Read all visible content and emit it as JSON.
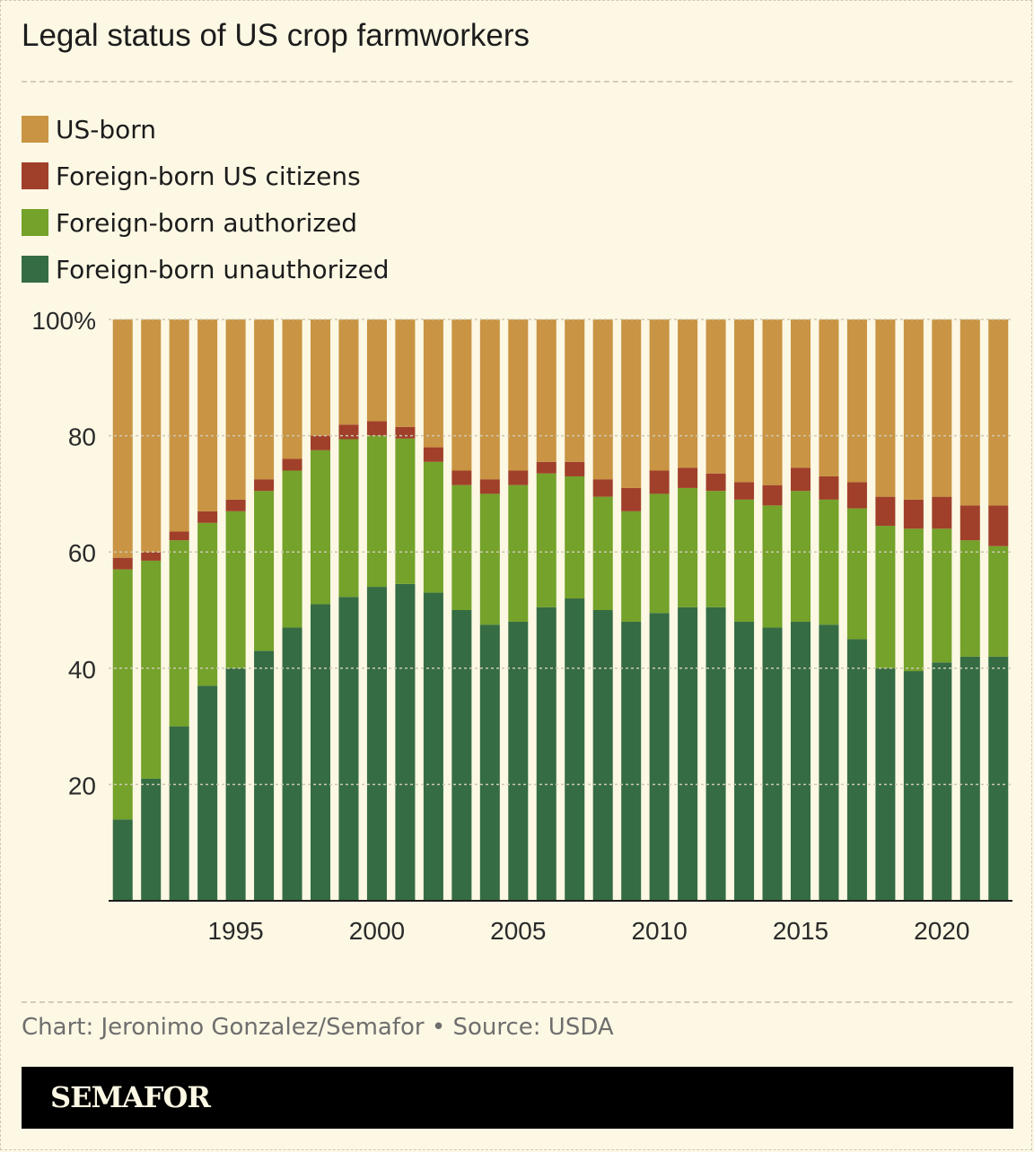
{
  "title": "Legal status of US crop farmworkers",
  "footer": "Chart: Jeronimo Gonzalez/Semafor • Source: USDA",
  "brand": "SEMAFOR",
  "colors": {
    "background": "#fcf8e4",
    "us_born": "#c99443",
    "citizens": "#a0402a",
    "authorized": "#74a22a",
    "unauthorized": "#356c43"
  },
  "legend": [
    {
      "label": "US-born",
      "color": "#c99443"
    },
    {
      "label": "Foreign-born US citizens",
      "color": "#a0402a"
    },
    {
      "label": "Foreign-born authorized",
      "color": "#74a22a"
    },
    {
      "label": "Foreign-born unauthorized",
      "color": "#356c43"
    }
  ],
  "chart_data": {
    "type": "bar",
    "stacked": true,
    "title": "Legal status of US crop farmworkers",
    "xlabel": "",
    "ylabel": "",
    "ylim": [
      0,
      100
    ],
    "y_ticks": [
      "20",
      "40",
      "60",
      "80",
      "100%"
    ],
    "x_tick_labels": [
      "1995",
      "2000",
      "2005",
      "2010",
      "2015",
      "2020"
    ],
    "grid": true,
    "legend_position": "top-left",
    "x": [
      1991,
      1992,
      1993,
      1994,
      1995,
      1996,
      1997,
      1998,
      1999,
      2000,
      2001,
      2002,
      2003,
      2004,
      2005,
      2006,
      2007,
      2008,
      2009,
      2010,
      2011,
      2012,
      2013,
      2014,
      2015,
      2016,
      2017,
      2018,
      2019,
      2020,
      2021,
      2022
    ],
    "series": [
      {
        "name": "Foreign-born unauthorized",
        "color": "#356c43",
        "values": [
          14,
          21,
          30,
          37,
          40,
          43,
          47,
          51,
          52,
          54,
          54.5,
          53,
          50,
          47.5,
          48,
          50.5,
          52,
          50,
          48,
          49.5,
          50.5,
          50.5,
          48,
          47,
          48,
          47.5,
          45,
          40,
          39.5,
          41,
          42,
          42
        ]
      },
      {
        "name": "Foreign-born authorized",
        "color": "#74a22a",
        "values": [
          43,
          37.5,
          32,
          28,
          27,
          27.5,
          27,
          26.5,
          27,
          26,
          25,
          22.5,
          21.5,
          22.5,
          23.5,
          23,
          21,
          19.5,
          19,
          20.5,
          20.5,
          20,
          21,
          21,
          22.5,
          21.5,
          22.5,
          24.5,
          24.5,
          23,
          20,
          19
        ]
      },
      {
        "name": "Foreign-born US citizens",
        "color": "#a0402a",
        "values": [
          2,
          1.5,
          1.5,
          2,
          2,
          2,
          2,
          2.5,
          2.5,
          2.5,
          2,
          2.5,
          2.5,
          2.5,
          2.5,
          2,
          2.5,
          3,
          4,
          4,
          3.5,
          3,
          3,
          3.5,
          4,
          4,
          4.5,
          5,
          5,
          5.5,
          6,
          7
        ]
      },
      {
        "name": "US-born",
        "color": "#c99443",
        "values": [
          41,
          40,
          36.5,
          33,
          31,
          27.5,
          24,
          20,
          18,
          17.5,
          18.5,
          22,
          26,
          27.5,
          26,
          24.5,
          24.5,
          27.5,
          29,
          26,
          25.5,
          26.5,
          28,
          28.5,
          25.5,
          27,
          28,
          30.5,
          31,
          30.5,
          32,
          32
        ]
      }
    ]
  }
}
